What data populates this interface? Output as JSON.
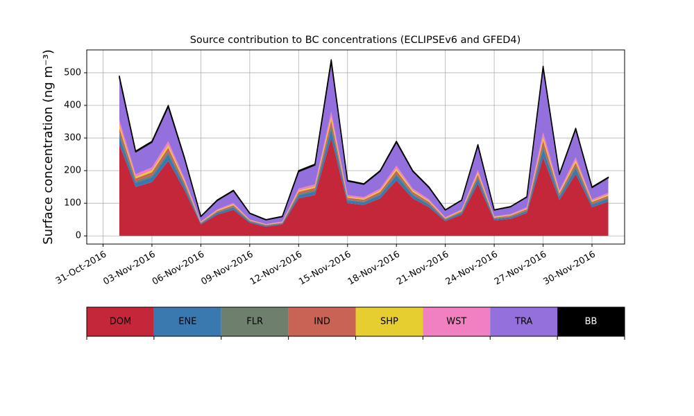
{
  "chart_data": {
    "type": "stacked_area",
    "title": "Source contribution to BC concentrations (ECLIPSEv6 and GFED4)",
    "y_label": "Surface concentration (ng m⁻³)",
    "x": [
      "2016-11-01",
      "2016-11-02",
      "2016-11-03",
      "2016-11-04",
      "2016-11-05",
      "2016-11-06",
      "2016-11-07",
      "2016-11-08",
      "2016-11-09",
      "2016-11-10",
      "2016-11-11",
      "2016-11-12",
      "2016-11-13",
      "2016-11-14",
      "2016-11-15",
      "2016-11-16",
      "2016-11-17",
      "2016-11-18",
      "2016-11-19",
      "2016-11-20",
      "2016-11-21",
      "2016-11-22",
      "2016-11-23",
      "2016-11-24",
      "2016-11-25",
      "2016-11-26",
      "2016-11-27",
      "2016-11-28",
      "2016-11-29",
      "2016-11-30",
      "2016-12-01"
    ],
    "series": [
      {
        "name": "DOM",
        "color": "#c4273a",
        "values": [
          280,
          150,
          165,
          230,
          140,
          35,
          65,
          80,
          40,
          28,
          35,
          115,
          125,
          300,
          100,
          95,
          115,
          170,
          115,
          88,
          45,
          65,
          160,
          48,
          52,
          70,
          240,
          110,
          190,
          88,
          105
        ]
      },
      {
        "name": "ENE",
        "color": "#3a78b0",
        "values": [
          25,
          13,
          15,
          20,
          12,
          3,
          6,
          7,
          4,
          3,
          3,
          10,
          11,
          27,
          9,
          8,
          10,
          15,
          10,
          8,
          4,
          6,
          14,
          4,
          5,
          6,
          26,
          10,
          17,
          8,
          9
        ]
      },
      {
        "name": "FLR",
        "color": "#6e7f6e",
        "values": [
          10,
          5,
          6,
          8,
          5,
          1,
          2,
          3,
          1,
          1,
          1,
          4,
          4,
          11,
          3,
          3,
          4,
          6,
          4,
          3,
          2,
          2,
          6,
          2,
          2,
          2,
          10,
          4,
          7,
          3,
          4
        ]
      },
      {
        "name": "IND",
        "color": "#c96355",
        "values": [
          15,
          8,
          9,
          12,
          7,
          2,
          3,
          4,
          2,
          2,
          2,
          6,
          7,
          16,
          5,
          5,
          6,
          9,
          6,
          5,
          2,
          3,
          8,
          2,
          3,
          4,
          16,
          6,
          10,
          5,
          5
        ]
      },
      {
        "name": "SHP",
        "color": "#e6cd30",
        "values": [
          10,
          5,
          6,
          8,
          5,
          1,
          2,
          3,
          1,
          1,
          1,
          4,
          4,
          11,
          3,
          3,
          4,
          6,
          4,
          3,
          2,
          2,
          6,
          2,
          2,
          2,
          10,
          4,
          7,
          3,
          4
        ]
      },
      {
        "name": "WST",
        "color": "#f080c0",
        "values": [
          15,
          8,
          9,
          12,
          7,
          2,
          3,
          4,
          2,
          1,
          2,
          6,
          7,
          16,
          5,
          5,
          6,
          9,
          6,
          5,
          2,
          3,
          8,
          2,
          3,
          4,
          16,
          6,
          10,
          5,
          5
        ]
      },
      {
        "name": "TRA",
        "color": "#9370db",
        "values": [
          130,
          68,
          77,
          106,
          61,
          15,
          27,
          37,
          19,
          13,
          15,
          52,
          59,
          153,
          43,
          39,
          53,
          72,
          53,
          36,
          22,
          28,
          75,
          19,
          22,
          31,
          197,
          48,
          86,
          36,
          46
        ]
      },
      {
        "name": "BB",
        "color": "#000000",
        "values": [
          5,
          3,
          3,
          4,
          3,
          1,
          2,
          2,
          1,
          1,
          1,
          3,
          3,
          6,
          2,
          2,
          2,
          3,
          2,
          2,
          1,
          1,
          3,
          1,
          1,
          1,
          5,
          2,
          3,
          2,
          2
        ]
      }
    ],
    "xlim": [
      "2016-10-30",
      "2016-12-02"
    ],
    "xticks": [
      {
        "value": "2016-10-31",
        "label": "31-Oct-2016"
      },
      {
        "value": "2016-11-03",
        "label": "03-Nov-2016"
      },
      {
        "value": "2016-11-06",
        "label": "06-Nov-2016"
      },
      {
        "value": "2016-11-09",
        "label": "09-Nov-2016"
      },
      {
        "value": "2016-11-12",
        "label": "12-Nov-2016"
      },
      {
        "value": "2016-11-15",
        "label": "15-Nov-2016"
      },
      {
        "value": "2016-11-18",
        "label": "18-Nov-2016"
      },
      {
        "value": "2016-11-21",
        "label": "21-Nov-2016"
      },
      {
        "value": "2016-11-24",
        "label": "24-Nov-2016"
      },
      {
        "value": "2016-11-27",
        "label": "27-Nov-2016"
      },
      {
        "value": "2016-11-30",
        "label": "30-Nov-2016"
      }
    ],
    "ylim": [
      -25,
      570
    ],
    "yticks": [
      0,
      100,
      200,
      300,
      400,
      500
    ],
    "grid": true
  }
}
